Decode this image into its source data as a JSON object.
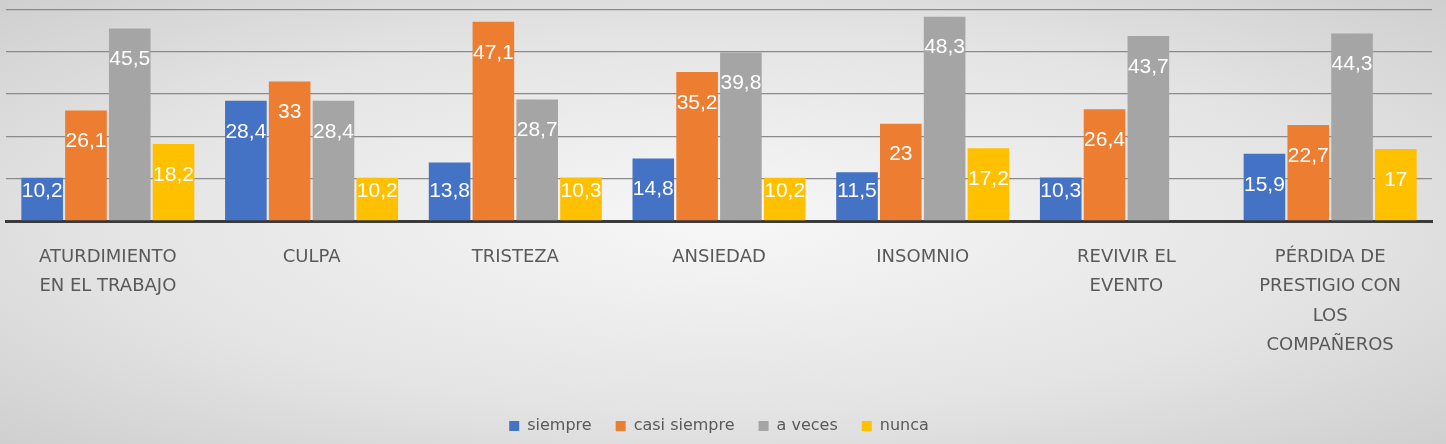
{
  "chart_data": {
    "type": "bar",
    "categories": [
      "ATURDIMIENTO EN EL TRABAJO",
      "CULPA",
      "TRISTEZA",
      "ANSIEDAD",
      "INSOMNIO",
      "REVIVIR EL EVENTO",
      "PÉRDIDA DE PRESTIGIO CON LOS COMPAÑEROS"
    ],
    "series": [
      {
        "name": "siempre",
        "color": "#4472c4",
        "values": [
          10.2,
          28.4,
          13.8,
          14.8,
          11.5,
          10.3,
          15.9
        ],
        "value_labels": [
          "10,2",
          "28,4",
          "13,8",
          "14,8",
          "11,5",
          "10,3",
          "15,9"
        ]
      },
      {
        "name": "casi siempre",
        "color": "#ed7d31",
        "values": [
          26.1,
          33,
          47.1,
          35.2,
          23,
          26.4,
          22.7
        ],
        "value_labels": [
          "26,1",
          "33",
          "47,1",
          "35,2",
          "23",
          "26,4",
          "22,7"
        ]
      },
      {
        "name": "a veces",
        "color": "#a5a5a5",
        "values": [
          45.5,
          28.4,
          28.7,
          39.8,
          48.3,
          43.7,
          44.3
        ],
        "value_labels": [
          "45,5",
          "28,4",
          "28,7",
          "39,8",
          "48,3",
          "43,7",
          "44,3"
        ]
      },
      {
        "name": "nunca",
        "color": "#ffc000",
        "values": [
          18.2,
          10.2,
          10.3,
          10.2,
          17.2,
          null,
          17
        ],
        "value_labels": [
          "18,2",
          "10,2",
          "10,3",
          "10,2",
          "17,2",
          null,
          "17"
        ]
      }
    ],
    "ylim": [
      0,
      52
    ],
    "yticks": [
      {
        "value": 0,
        "label": null
      },
      {
        "value": 10,
        "label": null
      },
      {
        "value": 20,
        "label": null
      },
      {
        "value": 30,
        "label": null
      },
      {
        "value": 40,
        "label": null
      },
      {
        "value": 50,
        "label": null
      }
    ],
    "grid": "y",
    "legend": "bottom",
    "tick_labels": "x"
  }
}
